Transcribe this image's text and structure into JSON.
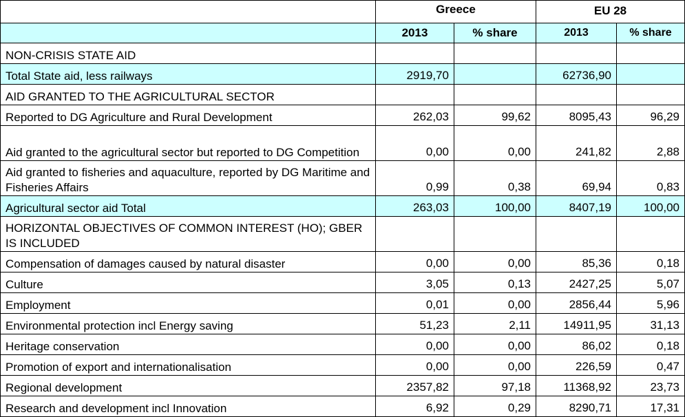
{
  "header": {
    "greece": "Greece",
    "eu28": "EU 28",
    "year_greece": "2013",
    "share_greece": "% share",
    "year_eu": "2013",
    "share_eu": "% share"
  },
  "rows": [
    {
      "label": "NON-CRISIS STATE AID",
      "gr": "",
      "gr_share": "",
      "eu": "",
      "eu_share": "",
      "highlight": false,
      "tall": false
    },
    {
      "label": "Total State aid, less railways",
      "gr": "2919,70",
      "gr_share": "",
      "eu": "62736,90",
      "eu_share": "",
      "highlight": true,
      "tall": false
    },
    {
      "label": "AID GRANTED TO THE AGRICULTURAL SECTOR",
      "gr": "",
      "gr_share": "",
      "eu": "",
      "eu_share": "",
      "highlight": false,
      "tall": false
    },
    {
      "label": "Reported to DG Agriculture and Rural Development",
      "gr": "262,03",
      "gr_share": "99,62",
      "eu": "8095,43",
      "eu_share": "96,29",
      "highlight": false,
      "tall": false
    },
    {
      "label": "Aid granted to the agricultural sector but reported to DG Competition",
      "gr": "0,00",
      "gr_share": "0,00",
      "eu": "241,82",
      "eu_share": "2,88",
      "highlight": false,
      "tall": true
    },
    {
      "label": "Aid granted to fisheries and aquaculture, reported by DG Maritime and Fisheries Affairs",
      "gr": "0,99",
      "gr_share": "0,38",
      "eu": "69,94",
      "eu_share": "0,83",
      "highlight": false,
      "tall": true
    },
    {
      "label": "Agricultural sector aid Total",
      "gr": "263,03",
      "gr_share": "100,00",
      "eu": "8407,19",
      "eu_share": "100,00",
      "highlight": true,
      "tall": false
    },
    {
      "label": "HORIZONTAL OBJECTIVES OF COMMON INTEREST (HO); GBER IS INCLUDED",
      "gr": "",
      "gr_share": "",
      "eu": "",
      "eu_share": "",
      "highlight": false,
      "tall": true
    },
    {
      "label": "Compensation of damages caused by natural disaster",
      "gr": "0,00",
      "gr_share": "0,00",
      "eu": "85,36",
      "eu_share": "0,18",
      "highlight": false,
      "tall": false
    },
    {
      "label": "Culture",
      "gr": "3,05",
      "gr_share": "0,13",
      "eu": "2427,25",
      "eu_share": "5,07",
      "highlight": false,
      "tall": false
    },
    {
      "label": "Employment",
      "gr": "0,01",
      "gr_share": "0,00",
      "eu": "2856,44",
      "eu_share": "5,96",
      "highlight": false,
      "tall": false
    },
    {
      "label": "Environmental protection incl Energy saving",
      "gr": "51,23",
      "gr_share": "2,11",
      "eu": "14911,95",
      "eu_share": "31,13",
      "highlight": false,
      "tall": false
    },
    {
      "label": "Heritage conservation",
      "gr": "0,00",
      "gr_share": "0,00",
      "eu": "86,02",
      "eu_share": "0,18",
      "highlight": false,
      "tall": false
    },
    {
      "label": "Promotion of export and internationalisation",
      "gr": "0,00",
      "gr_share": "0,00",
      "eu": "226,59",
      "eu_share": "0,47",
      "highlight": false,
      "tall": false
    },
    {
      "label": "Regional development",
      "gr": "2357,82",
      "gr_share": "97,18",
      "eu": "11368,92",
      "eu_share": "23,73",
      "highlight": false,
      "tall": false
    },
    {
      "label": "Research and development incl Innovation",
      "gr": "6,92",
      "gr_share": "0,29",
      "eu": "8290,71",
      "eu_share": "17,31",
      "highlight": false,
      "tall": false
    }
  ],
  "colors": {
    "highlight": "#ccffff",
    "border": "#000000"
  }
}
